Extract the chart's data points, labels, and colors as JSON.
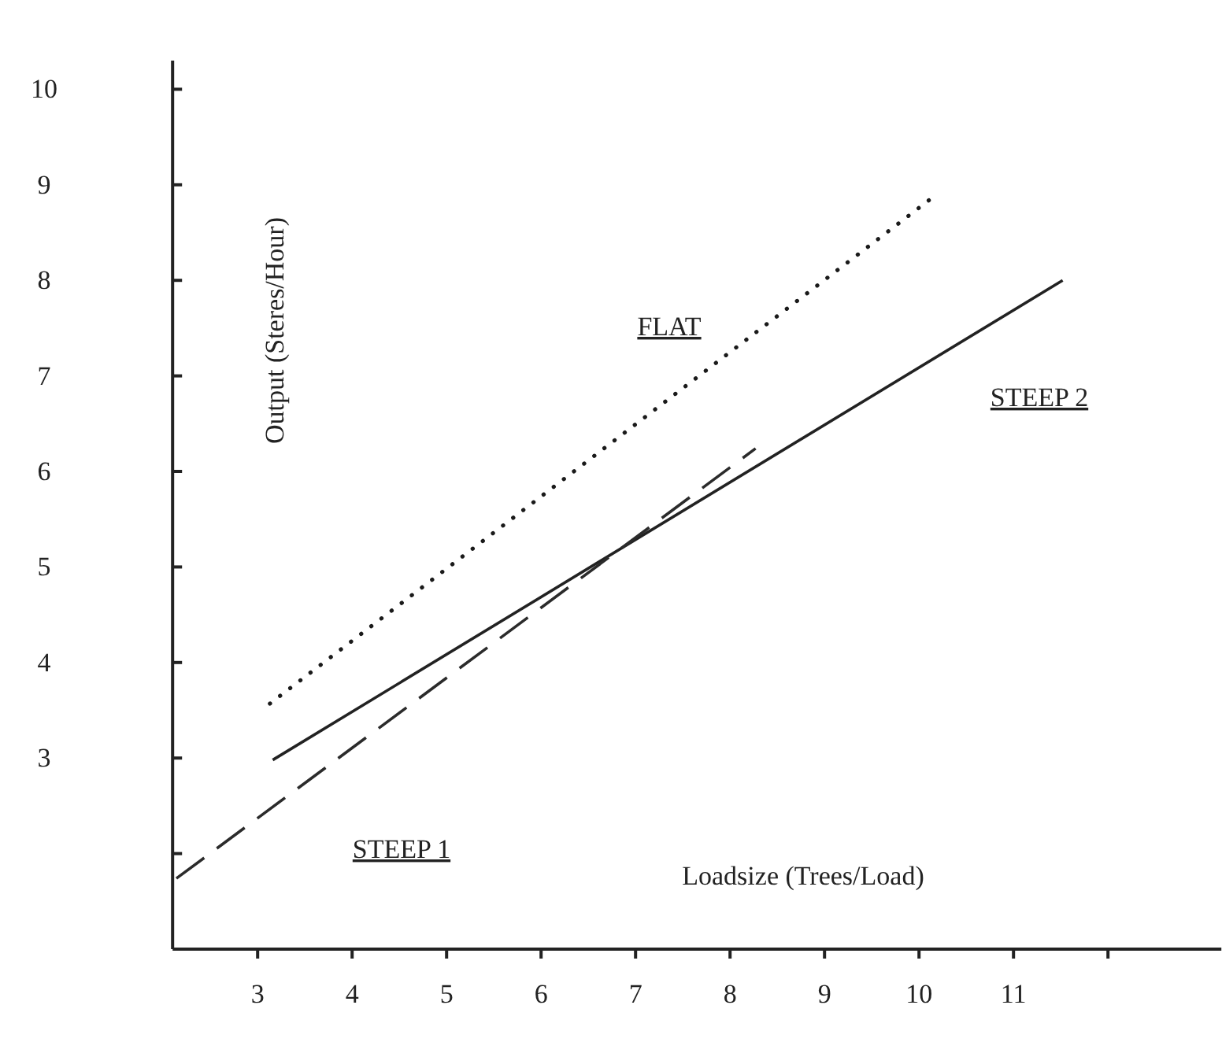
{
  "chart_data": {
    "type": "line",
    "xlabel": "Loadsize (Trees/Load)",
    "ylabel": "Output (Steres/Hour)",
    "xlim": [
      2.1,
      13.2
    ],
    "ylim": [
      1,
      10.3
    ],
    "xticks": [
      3,
      4,
      5,
      6,
      7,
      8,
      9,
      10,
      11,
      {
        "value": 12,
        "label": null
      }
    ],
    "yticks": [
      {
        "value": 2,
        "label": null
      },
      3,
      4,
      5,
      6,
      7,
      8,
      9,
      10
    ],
    "grid": false,
    "marker": "none",
    "series": [
      {
        "color": "#1a1a1a",
        "line_style": "dotted",
        "x": [
          3.13,
          10.12
        ],
        "values": [
          3.57,
          8.85
        ]
      },
      {
        "color": "#222222",
        "line_style": "solid",
        "x": [
          3.16,
          11.52
        ],
        "values": [
          2.98,
          8.0
        ]
      },
      {
        "color": "#2b2b2b",
        "line_style": "dashed",
        "x": [
          2.14,
          8.27
        ],
        "values": [
          1.74,
          6.24
        ]
      }
    ],
    "annotations": [
      "FLAT",
      "STEEP 2",
      "STEEP 1"
    ]
  }
}
